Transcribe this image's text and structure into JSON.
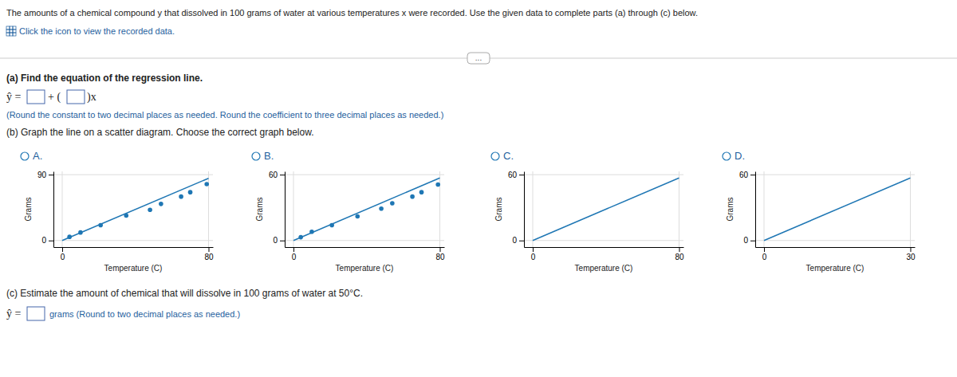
{
  "title": "The amounts of a chemical compound y that dissolved in 100 grams of water at various temperatures x were recorded. Use the given data to complete parts (a) through (c) below.",
  "annotations": [
    "Click the icon to view the recorded data.",
    "...",
    "(a) Find the equation of the regression line.",
    "ŷ =",
    "+ (",
    ")x",
    "(Round the constant to two decimal places as needed. Round the coefficient to three decimal places as needed.)",
    "(b) Graph the line on a scatter diagram. Choose the correct graph below.",
    "(c) Estimate the amount of chemical that will dissolve in 100 grams of water at 50°C.",
    "ŷ =",
    "grams (Round to two decimal places as needed.)"
  ],
  "chart_data": [
    {
      "type": "scatter",
      "title": "A.",
      "xlabel": "Temperature (C)",
      "ylabel": "Grams",
      "xlim": [
        -4.8,
        82.4
      ],
      "ylim": [
        -9,
        94.5
      ],
      "xticks": [
        0,
        80
      ],
      "yticks": [
        0,
        90
      ],
      "grid": true,
      "series": [
        {
          "type": "scatter",
          "x": [
            4,
            10,
            21,
            35,
            48,
            54,
            65,
            70,
            79
          ],
          "values": [
            5,
            11,
            21,
            34,
            42,
            50,
            60,
            66,
            77
          ]
        },
        {
          "type": "line",
          "x": [
            0,
            80
          ],
          "values": [
            0,
            85
          ]
        }
      ]
    },
    {
      "type": "scatter",
      "title": "B.",
      "xlabel": "Temperature (C)",
      "ylabel": "Grams",
      "xlim": [
        -4.8,
        82.4
      ],
      "ylim": [
        -6,
        63
      ],
      "xticks": [
        0,
        80
      ],
      "yticks": [
        0,
        60
      ],
      "grid": true,
      "series": [
        {
          "type": "scatter",
          "x": [
            4,
            10,
            21,
            35,
            48,
            54,
            65,
            70,
            79
          ],
          "values": [
            3,
            8,
            14,
            22,
            29,
            34,
            40,
            44,
            51
          ]
        },
        {
          "type": "line",
          "x": [
            0,
            80
          ],
          "values": [
            0,
            57
          ]
        }
      ]
    },
    {
      "type": "line",
      "title": "C.",
      "xlabel": "Temperature (C)",
      "ylabel": "Grams",
      "xlim": [
        -4.8,
        82.4
      ],
      "ylim": [
        -6,
        63
      ],
      "xticks": [
        0,
        80
      ],
      "yticks": [
        0,
        60
      ],
      "grid": true,
      "series": [
        {
          "type": "line",
          "x": [
            0,
            80
          ],
          "values": [
            0,
            57
          ]
        }
      ]
    },
    {
      "type": "line",
      "title": "D.",
      "xlabel": "Temperature (C)",
      "ylabel": "Grams",
      "xlim": [
        -1.8,
        30.9
      ],
      "ylim": [
        -6,
        63
      ],
      "xticks": [
        0,
        30
      ],
      "yticks": [
        0,
        60
      ],
      "grid": true,
      "series": [
        {
          "type": "line",
          "x": [
            0,
            30
          ],
          "values": [
            0,
            57
          ]
        }
      ]
    }
  ]
}
